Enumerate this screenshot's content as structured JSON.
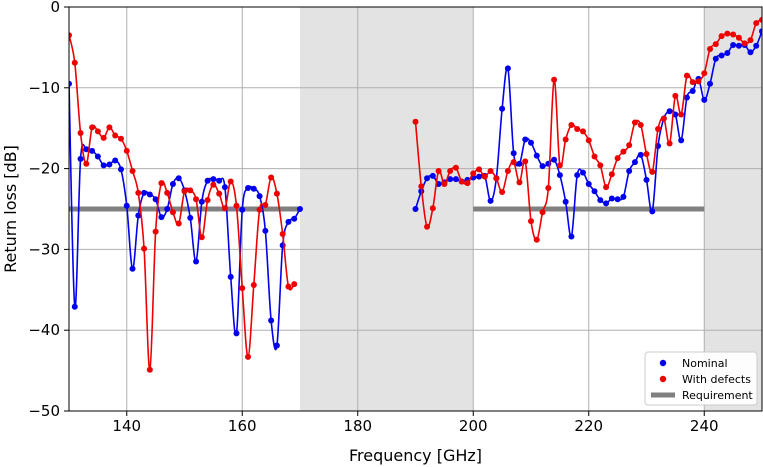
{
  "chart_data": {
    "type": "line",
    "xlabel": "Frequency [GHz]",
    "ylabel": "Return loss [dB]",
    "xlim": [
      130,
      250
    ],
    "ylim": [
      -50,
      0
    ],
    "xticks": [
      140,
      160,
      180,
      200,
      220,
      240
    ],
    "yticks": [
      0,
      -10,
      -20,
      -30,
      -40,
      -50
    ],
    "grid": true,
    "legend_position": "bottom-right",
    "shaded_regions": [
      [
        170,
        200
      ],
      [
        240,
        250
      ]
    ],
    "series": [
      {
        "name": "Nominal",
        "color": "#0000ee",
        "marker": "circle",
        "segments": [
          [
            [
              130,
              -9.5
            ],
            [
              131,
              -37.1
            ],
            [
              132,
              -18.8
            ],
            [
              133,
              -17.6
            ],
            [
              134,
              -17.8
            ],
            [
              135,
              -18.5
            ],
            [
              136,
              -19.6
            ],
            [
              137,
              -19.5
            ],
            [
              138,
              -19.0
            ],
            [
              139,
              -20.1
            ],
            [
              140,
              -24.6
            ],
            [
              141,
              -32.4
            ],
            [
              142,
              -25.8
            ],
            [
              143,
              -23.0
            ],
            [
              144,
              -23.2
            ],
            [
              145,
              -23.8
            ],
            [
              146,
              -26.0
            ],
            [
              147,
              -25.0
            ],
            [
              148,
              -21.9
            ],
            [
              149,
              -21.2
            ],
            [
              150,
              -22.7
            ],
            [
              151,
              -26.1
            ],
            [
              152,
              -31.5
            ],
            [
              153,
              -24.1
            ],
            [
              154,
              -21.5
            ],
            [
              155,
              -21.3
            ],
            [
              156,
              -21.5
            ],
            [
              157,
              -22.3
            ],
            [
              158,
              -33.4
            ],
            [
              159,
              -40.4
            ],
            [
              160,
              -25.1
            ],
            [
              161,
              -22.4
            ],
            [
              162,
              -22.5
            ],
            [
              163,
              -23.4
            ],
            [
              164,
              -27.7
            ],
            [
              165,
              -38.8
            ],
            [
              166,
              -41.9
            ],
            [
              167,
              -29.5
            ],
            [
              168,
              -26.6
            ],
            [
              169,
              -26.2
            ],
            [
              170,
              -25.0
            ]
          ],
          [
            [
              190,
              -25.0
            ],
            [
              191,
              -22.8
            ],
            [
              192,
              -21.2
            ],
            [
              193,
              -20.9
            ],
            [
              194,
              -21.9
            ],
            [
              195,
              -21.7
            ],
            [
              196,
              -21.3
            ],
            [
              197,
              -21.3
            ],
            [
              198,
              -21.6
            ],
            [
              199,
              -21.4
            ],
            [
              200,
              -21.1
            ],
            [
              201,
              -21.0
            ],
            [
              202,
              -20.9
            ],
            [
              203,
              -24.0
            ],
            [
              204,
              -21.2
            ],
            [
              205,
              -12.6
            ],
            [
              206,
              -7.6
            ],
            [
              207,
              -18.1
            ],
            [
              208,
              -19.4
            ],
            [
              209,
              -16.4
            ],
            [
              210,
              -16.8
            ],
            [
              211,
              -18.4
            ],
            [
              212,
              -19.7
            ],
            [
              213,
              -19.4
            ],
            [
              214,
              -18.9
            ],
            [
              215,
              -20.8
            ],
            [
              216,
              -24.1
            ],
            [
              217,
              -28.4
            ],
            [
              218,
              -20.8
            ],
            [
              219,
              -20.5
            ],
            [
              220,
              -21.9
            ],
            [
              221,
              -22.8
            ],
            [
              222,
              -23.9
            ],
            [
              223,
              -24.3
            ],
            [
              224,
              -23.7
            ],
            [
              225,
              -23.8
            ],
            [
              226,
              -23.5
            ],
            [
              227,
              -20.3
            ],
            [
              228,
              -19.2
            ],
            [
              229,
              -18.3
            ],
            [
              230,
              -21.4
            ],
            [
              231,
              -25.3
            ],
            [
              232,
              -17.2
            ],
            [
              233,
              -13.8
            ],
            [
              234,
              -12.9
            ],
            [
              235,
              -13.3
            ],
            [
              236,
              -16.5
            ],
            [
              237,
              -11.2
            ],
            [
              238,
              -10.4
            ],
            [
              239,
              -8.9
            ],
            [
              240,
              -11.5
            ],
            [
              241,
              -9.5
            ],
            [
              242,
              -6.4
            ],
            [
              243,
              -6.0
            ],
            [
              244,
              -5.7
            ],
            [
              245,
              -4.7
            ],
            [
              246,
              -4.8
            ],
            [
              247,
              -4.7
            ],
            [
              248,
              -5.6
            ],
            [
              249,
              -4.8
            ],
            [
              250,
              -3.0
            ]
          ]
        ]
      },
      {
        "name": "With defects",
        "color": "#ee0000",
        "marker": "circle",
        "segments": [
          [
            [
              130,
              -3.5
            ],
            [
              131,
              -6.9
            ],
            [
              132,
              -15.6
            ],
            [
              133,
              -19.4
            ],
            [
              134,
              -14.9
            ],
            [
              135,
              -15.4
            ],
            [
              136,
              -16.2
            ],
            [
              137,
              -14.9
            ],
            [
              138,
              -15.9
            ],
            [
              139,
              -16.3
            ],
            [
              140,
              -17.8
            ],
            [
              141,
              -20.3
            ],
            [
              142,
              -23.0
            ],
            [
              143,
              -29.9
            ],
            [
              144,
              -44.9
            ],
            [
              145,
              -27.8
            ],
            [
              146,
              -21.8
            ],
            [
              147,
              -23.0
            ],
            [
              148,
              -25.4
            ],
            [
              149,
              -26.8
            ],
            [
              150,
              -22.8
            ],
            [
              151,
              -22.7
            ],
            [
              152,
              -23.8
            ],
            [
              153,
              -28.5
            ],
            [
              154,
              -23.9
            ],
            [
              155,
              -22.0
            ],
            [
              156,
              -23.1
            ],
            [
              157,
              -24.9
            ],
            [
              158,
              -21.6
            ],
            [
              159,
              -24.6
            ],
            [
              160,
              -34.8
            ],
            [
              161,
              -43.3
            ],
            [
              162,
              -34.4
            ],
            [
              163,
              -25.1
            ],
            [
              164,
              -24.5
            ],
            [
              165,
              -21.1
            ],
            [
              166,
              -23.1
            ],
            [
              167,
              -28.1
            ],
            [
              168,
              -34.6
            ],
            [
              169,
              -34.3
            ]
          ],
          [
            [
              190,
              -14.2
            ],
            [
              191,
              -22.2
            ],
            [
              192,
              -27.2
            ],
            [
              193,
              -24.9
            ],
            [
              194,
              -20.3
            ],
            [
              195,
              -21.9
            ],
            [
              196,
              -20.3
            ],
            [
              197,
              -19.9
            ],
            [
              198,
              -21.6
            ],
            [
              199,
              -21.8
            ],
            [
              200,
              -20.6
            ],
            [
              201,
              -20.1
            ],
            [
              202,
              -21.0
            ],
            [
              203,
              -20.3
            ],
            [
              204,
              -21.2
            ],
            [
              205,
              -22.9
            ],
            [
              206,
              -20.3
            ],
            [
              207,
              -19.2
            ],
            [
              208,
              -21.7
            ],
            [
              209,
              -19.1
            ],
            [
              210,
              -26.5
            ],
            [
              211,
              -28.8
            ],
            [
              212,
              -25.4
            ],
            [
              213,
              -22.4
            ],
            [
              214,
              -9.0
            ],
            [
              215,
              -19.6
            ],
            [
              216,
              -16.4
            ],
            [
              217,
              -14.6
            ],
            [
              218,
              -15.1
            ],
            [
              219,
              -15.4
            ],
            [
              220,
              -16.5
            ],
            [
              221,
              -18.5
            ],
            [
              222,
              -19.6
            ],
            [
              223,
              -22.3
            ],
            [
              224,
              -20.7
            ],
            [
              225,
              -18.7
            ],
            [
              226,
              -17.9
            ],
            [
              227,
              -17.1
            ],
            [
              228,
              -14.3
            ],
            [
              229,
              -14.6
            ],
            [
              230,
              -18.2
            ],
            [
              231,
              -20.4
            ],
            [
              232,
              -15.1
            ],
            [
              233,
              -13.8
            ],
            [
              234,
              -16.9
            ],
            [
              235,
              -11.0
            ],
            [
              236,
              -13.3
            ],
            [
              237,
              -8.5
            ],
            [
              238,
              -9.3
            ],
            [
              239,
              -9.2
            ],
            [
              240,
              -8.2
            ],
            [
              241,
              -5.2
            ],
            [
              242,
              -4.6
            ],
            [
              243,
              -3.6
            ],
            [
              244,
              -3.3
            ],
            [
              245,
              -3.4
            ],
            [
              246,
              -3.8
            ],
            [
              247,
              -4.5
            ],
            [
              248,
              -4.1
            ],
            [
              249,
              -2.0
            ],
            [
              250,
              -1.6
            ]
          ]
        ]
      },
      {
        "name": "Requirement",
        "color": "#808080",
        "marker": "none",
        "segments": [
          [
            [
              130,
              -25
            ],
            [
              170,
              -25
            ]
          ],
          [
            [
              200,
              -25
            ],
            [
              240,
              -25
            ]
          ]
        ]
      }
    ]
  }
}
